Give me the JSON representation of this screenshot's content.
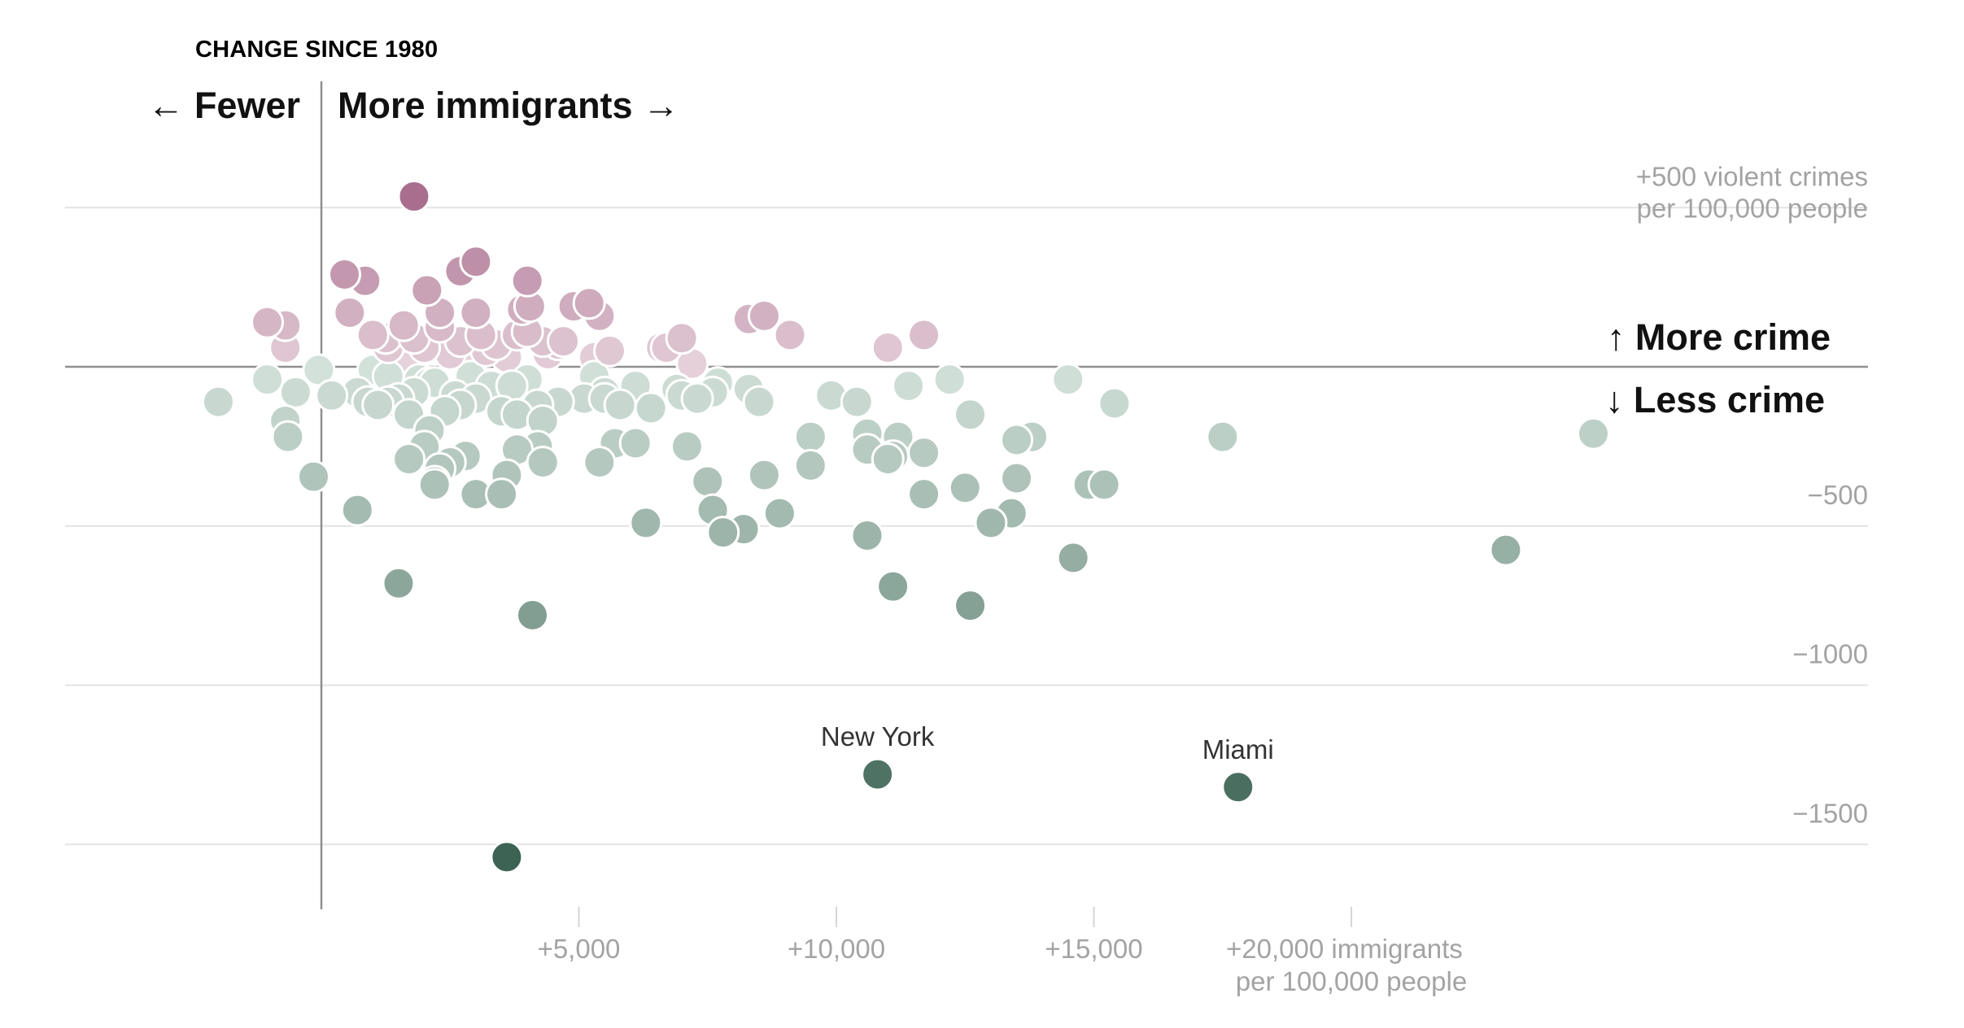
{
  "chart_data": {
    "type": "scatter",
    "title": "CHANGE SINCE 1980",
    "direction_labels": {
      "left": "← Fewer",
      "right": "More immigrants →",
      "up": "↑ More crime",
      "down": "↓ Less crime"
    },
    "x_axis": {
      "ticks": [
        {
          "value": 5000,
          "label": "+5,000"
        },
        {
          "value": 10000,
          "label": "+10,000"
        },
        {
          "value": 15000,
          "label": "+15,000"
        },
        {
          "value": 20000,
          "label": "+20,000 immigrants"
        }
      ],
      "unit_label": "per 100,000 people",
      "range": [
        -5000,
        30000
      ]
    },
    "y_axis": {
      "ticks": [
        {
          "value": 500,
          "label": "+500 violent crimes"
        },
        {
          "value": -500,
          "label": "−500"
        },
        {
          "value": -1000,
          "label": "−1000"
        },
        {
          "value": -1500,
          "label": "−1500"
        }
      ],
      "unit_label": "per 100,000 people",
      "range": [
        -1700,
        700
      ]
    },
    "grid": true,
    "colors": {
      "increase_strong": "#a96e8e",
      "increase_light": "#e6d2db",
      "decrease_light": "#d3e2db",
      "decrease_strong": "#3c6353",
      "zero_line": "#8f8f8f",
      "grid_line": "#e3e3e3"
    },
    "labeled_points": [
      {
        "name": "New York",
        "x": 10800,
        "y": -1280
      },
      {
        "name": "Miami",
        "x": 17800,
        "y": -1320
      }
    ],
    "points": [
      {
        "x": 1800,
        "y": 535
      },
      {
        "x": 450,
        "y": 290
      },
      {
        "x": 850,
        "y": 270
      },
      {
        "x": 2700,
        "y": 300
      },
      {
        "x": 3000,
        "y": 330
      },
      {
        "x": 2050,
        "y": 240
      },
      {
        "x": 4000,
        "y": 270
      },
      {
        "x": 4050,
        "y": 190
      },
      {
        "x": 550,
        "y": 170
      },
      {
        "x": 1600,
        "y": 130
      },
      {
        "x": 2300,
        "y": 170
      },
      {
        "x": 3000,
        "y": 170
      },
      {
        "x": -1050,
        "y": 140
      },
      {
        "x": -700,
        "y": 130
      },
      {
        "x": -700,
        "y": 60
      },
      {
        "x": 1000,
        "y": 100
      },
      {
        "x": 1250,
        "y": 90
      },
      {
        "x": 1800,
        "y": 90
      },
      {
        "x": 2300,
        "y": 125
      },
      {
        "x": 2700,
        "y": 80
      },
      {
        "x": 3400,
        "y": 70
      },
      {
        "x": 4000,
        "y": 110
      },
      {
        "x": 3800,
        "y": 100
      },
      {
        "x": 4300,
        "y": 80
      },
      {
        "x": 3900,
        "y": 180
      },
      {
        "x": 4900,
        "y": 190
      },
      {
        "x": 5200,
        "y": 200
      },
      {
        "x": 5400,
        "y": 160
      },
      {
        "x": 4600,
        "y": 70
      },
      {
        "x": 5300,
        "y": 30
      },
      {
        "x": 5600,
        "y": 50
      },
      {
        "x": 6600,
        "y": 60
      },
      {
        "x": 7000,
        "y": 90
      },
      {
        "x": 8300,
        "y": 150
      },
      {
        "x": 8600,
        "y": 160
      },
      {
        "x": 9100,
        "y": 100
      },
      {
        "x": 11000,
        "y": 60
      },
      {
        "x": 11700,
        "y": 100
      },
      {
        "x": 3200,
        "y": 50
      },
      {
        "x": 2500,
        "y": 40
      },
      {
        "x": 1600,
        "y": 0
      },
      {
        "x": 2900,
        "y": 10
      },
      {
        "x": 3600,
        "y": 30
      },
      {
        "x": 6700,
        "y": 60
      },
      {
        "x": 7200,
        "y": 10
      },
      {
        "x": 4700,
        "y": 80
      },
      {
        "x": 4400,
        "y": 40
      },
      {
        "x": 2000,
        "y": 60
      },
      {
        "x": 3100,
        "y": 100
      },
      {
        "x": 1300,
        "y": 60
      },
      {
        "x": -2000,
        "y": -110
      },
      {
        "x": -1050,
        "y": -40
      },
      {
        "x": -700,
        "y": -170
      },
      {
        "x": -650,
        "y": -220
      },
      {
        "x": -500,
        "y": -80
      },
      {
        "x": 200,
        "y": -90
      },
      {
        "x": -50,
        "y": -10
      },
      {
        "x": 700,
        "y": -80
      },
      {
        "x": 900,
        "y": -110
      },
      {
        "x": 1100,
        "y": -120
      },
      {
        "x": 1500,
        "y": -100
      },
      {
        "x": 1800,
        "y": -80
      },
      {
        "x": 2100,
        "y": -50
      },
      {
        "x": 2400,
        "y": -140
      },
      {
        "x": 2700,
        "y": -120
      },
      {
        "x": 3000,
        "y": -100
      },
      {
        "x": 3300,
        "y": -60
      },
      {
        "x": 3500,
        "y": -140
      },
      {
        "x": 3800,
        "y": -150
      },
      {
        "x": 4200,
        "y": -120
      },
      {
        "x": 4600,
        "y": -110
      },
      {
        "x": 5100,
        "y": -100
      },
      {
        "x": 5500,
        "y": -80
      },
      {
        "x": 5800,
        "y": -120
      },
      {
        "x": 6100,
        "y": -60
      },
      {
        "x": 6400,
        "y": -130
      },
      {
        "x": 6900,
        "y": -70
      },
      {
        "x": 7300,
        "y": -100
      },
      {
        "x": 7700,
        "y": -50
      },
      {
        "x": 8300,
        "y": -70
      },
      {
        "x": 8500,
        "y": -110
      },
      {
        "x": 9900,
        "y": -90
      },
      {
        "x": 10400,
        "y": -110
      },
      {
        "x": 11400,
        "y": -60
      },
      {
        "x": 12200,
        "y": -40
      },
      {
        "x": 12600,
        "y": -150
      },
      {
        "x": 14500,
        "y": -40
      },
      {
        "x": 15400,
        "y": -115
      },
      {
        "x": 1000,
        "y": -10
      },
      {
        "x": 1300,
        "y": -30
      },
      {
        "x": 2900,
        "y": -30
      },
      {
        "x": 4000,
        "y": -40
      },
      {
        "x": 5300,
        "y": -30
      },
      {
        "x": 4300,
        "y": -170
      },
      {
        "x": 2200,
        "y": -50
      },
      {
        "x": 1300,
        "y": -110
      },
      {
        "x": 1900,
        "y": -40
      },
      {
        "x": 3700,
        "y": -60
      },
      {
        "x": 5500,
        "y": -100
      },
      {
        "x": 7600,
        "y": -80
      },
      {
        "x": 2600,
        "y": -90
      },
      {
        "x": 1700,
        "y": -150
      },
      {
        "x": 7000,
        "y": -90
      },
      {
        "x": 1700,
        "y": -290
      },
      {
        "x": 2000,
        "y": -250
      },
      {
        "x": 2200,
        "y": -360
      },
      {
        "x": 2500,
        "y": -300
      },
      {
        "x": 2800,
        "y": -280
      },
      {
        "x": 3000,
        "y": -400
      },
      {
        "x": 3600,
        "y": -340
      },
      {
        "x": 3800,
        "y": -260
      },
      {
        "x": 4300,
        "y": -300
      },
      {
        "x": 5400,
        "y": -300
      },
      {
        "x": 5700,
        "y": -240
      },
      {
        "x": 6100,
        "y": -240
      },
      {
        "x": 6400,
        "y": -130
      },
      {
        "x": 7100,
        "y": -250
      },
      {
        "x": 7500,
        "y": -360
      },
      {
        "x": 7600,
        "y": -450
      },
      {
        "x": 7800,
        "y": -520
      },
      {
        "x": 8200,
        "y": -510
      },
      {
        "x": 8600,
        "y": -340
      },
      {
        "x": 8900,
        "y": -460
      },
      {
        "x": 9500,
        "y": -310
      },
      {
        "x": 9500,
        "y": -220
      },
      {
        "x": 10600,
        "y": -260
      },
      {
        "x": 10600,
        "y": -210
      },
      {
        "x": 11100,
        "y": -280
      },
      {
        "x": 11200,
        "y": -220
      },
      {
        "x": 11700,
        "y": -270
      },
      {
        "x": 11700,
        "y": -400
      },
      {
        "x": 12500,
        "y": -380
      },
      {
        "x": 13000,
        "y": -490
      },
      {
        "x": 13400,
        "y": -460
      },
      {
        "x": 13500,
        "y": -350
      },
      {
        "x": 13500,
        "y": -230
      },
      {
        "x": 14900,
        "y": -370
      },
      {
        "x": 15200,
        "y": -370
      },
      {
        "x": 17500,
        "y": -220
      },
      {
        "x": 24700,
        "y": -210
      },
      {
        "x": -150,
        "y": -345
      },
      {
        "x": 700,
        "y": -450
      },
      {
        "x": 6300,
        "y": -490
      },
      {
        "x": 10600,
        "y": -530
      },
      {
        "x": 3500,
        "y": -400
      },
      {
        "x": 2200,
        "y": -370
      },
      {
        "x": 13800,
        "y": -220
      },
      {
        "x": 11000,
        "y": -290
      },
      {
        "x": 2300,
        "y": -320
      },
      {
        "x": 2100,
        "y": -200
      },
      {
        "x": 4200,
        "y": -250
      },
      {
        "x": 1500,
        "y": -680
      },
      {
        "x": 4100,
        "y": -780
      },
      {
        "x": 11100,
        "y": -690
      },
      {
        "x": 12600,
        "y": -750
      },
      {
        "x": 14600,
        "y": -600
      },
      {
        "x": 23000,
        "y": -575
      },
      {
        "x": 3600,
        "y": -1540
      }
    ]
  }
}
